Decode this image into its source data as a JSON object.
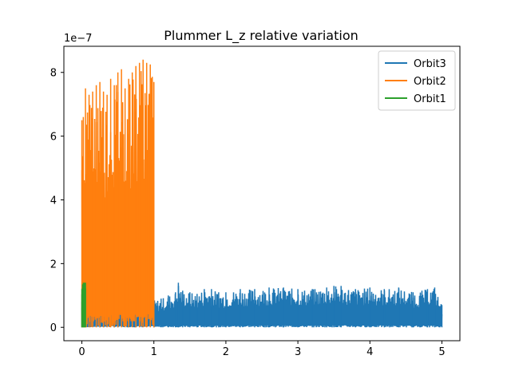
{
  "chart_data": {
    "type": "line",
    "title": "Plummer L_z relative variation",
    "xlabel": "",
    "ylabel": "",
    "y_offset_label": "1e−7",
    "y_scale_factor": 1e-07,
    "xlim": [
      -0.25,
      5.25
    ],
    "ylim": [
      -0.42,
      8.82
    ],
    "xticks": [
      0,
      1,
      2,
      3,
      4,
      5
    ],
    "xtick_labels": [
      "0",
      "1",
      "2",
      "3",
      "4",
      "5"
    ],
    "yticks": [
      0,
      2,
      4,
      6,
      8
    ],
    "ytick_labels": [
      "0",
      "2",
      "4",
      "6",
      "8"
    ],
    "grid": false,
    "legend_position": "upper right",
    "series": [
      {
        "name": "Orbit3",
        "color": "#1f77b4",
        "x": [
          0.0,
          0.25,
          0.5,
          0.75,
          1.0,
          1.1,
          1.2,
          1.3,
          1.34,
          1.4,
          1.5,
          1.6,
          1.7,
          1.8,
          1.9,
          2.0,
          2.2,
          2.4,
          2.6,
          2.8,
          3.0,
          3.2,
          3.4,
          3.5,
          3.6,
          3.8,
          4.0,
          4.2,
          4.4,
          4.6,
          4.8,
          4.9,
          5.0
        ],
        "y_max": [
          0.8,
          0.9,
          0.8,
          0.9,
          0.85,
          0.9,
          1.0,
          1.1,
          1.4,
          1.15,
          1.1,
          1.05,
          1.2,
          1.2,
          1.1,
          1.1,
          1.2,
          1.2,
          1.25,
          1.25,
          1.2,
          1.2,
          1.25,
          1.3,
          1.3,
          1.2,
          1.25,
          1.2,
          1.25,
          1.1,
          1.2,
          1.25,
          0.7
        ],
        "y_min": [
          0.0,
          0.0,
          0.0,
          0.0,
          0.0,
          0.0,
          0.0,
          0.0,
          0.0,
          0.0,
          0.0,
          0.0,
          0.0,
          0.0,
          0.0,
          0.0,
          0.0,
          0.0,
          0.0,
          0.0,
          0.0,
          0.0,
          0.0,
          0.0,
          0.0,
          0.0,
          0.0,
          0.0,
          0.0,
          0.0,
          0.0,
          0.0,
          0.0
        ]
      },
      {
        "name": "Orbit2",
        "color": "#ff7f0e",
        "x": [
          0.0,
          0.02,
          0.05,
          0.1,
          0.15,
          0.2,
          0.25,
          0.3,
          0.35,
          0.4,
          0.45,
          0.5,
          0.55,
          0.6,
          0.65,
          0.7,
          0.75,
          0.8,
          0.85,
          0.9,
          0.95,
          1.0
        ],
        "y_max": [
          6.5,
          6.6,
          7.5,
          7.3,
          7.4,
          7.6,
          7.7,
          7.4,
          7.3,
          7.8,
          7.6,
          8.0,
          8.1,
          7.5,
          7.8,
          8.0,
          8.2,
          8.3,
          8.4,
          8.3,
          8.25,
          7.7
        ],
        "y_min": [
          0.0,
          0.0,
          0.0,
          0.0,
          0.0,
          0.0,
          0.0,
          0.0,
          0.0,
          0.0,
          0.0,
          0.0,
          0.0,
          0.0,
          0.0,
          0.0,
          0.0,
          0.0,
          0.0,
          0.0,
          0.0,
          0.0
        ]
      },
      {
        "name": "Orbit1",
        "color": "#2ca02c",
        "x": [
          0.0,
          0.01,
          0.02,
          0.03,
          0.04,
          0.05
        ],
        "y_max": [
          1.2,
          1.35,
          1.4,
          1.4,
          1.4,
          1.4
        ],
        "y_min": [
          0.0,
          0.0,
          0.0,
          0.0,
          0.0,
          0.0
        ]
      }
    ]
  }
}
